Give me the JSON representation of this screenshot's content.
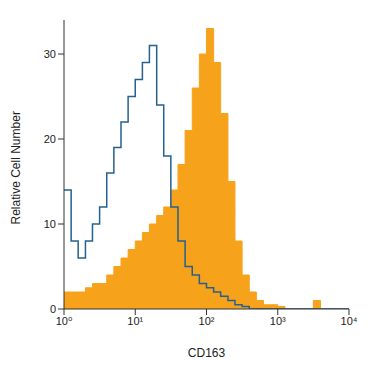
{
  "chart_data": {
    "type": "histogram",
    "x_label": "CD163",
    "y_label": "Relative Cell Number",
    "log": "x",
    "bins": [
      1,
      1.26,
      1.58,
      2,
      2.51,
      3.16,
      3.98,
      5.01,
      6.31,
      7.94,
      10,
      12.6,
      15.8,
      20,
      25.1,
      31.6,
      39.8,
      50.1,
      63.1,
      79.4,
      100,
      126,
      158,
      200,
      251,
      316,
      398,
      501,
      631,
      794,
      1000,
      1260,
      1580,
      2000,
      2510,
      3160,
      3980,
      5010,
      6310,
      7940,
      10000
    ],
    "series": [
      {
        "type": "area",
        "color": "#f7a21b",
        "values": [
          2,
          2,
          2,
          2.5,
          3,
          3,
          4,
          5,
          6,
          7,
          8,
          9,
          10,
          11,
          12,
          14,
          17,
          21,
          26,
          30,
          33,
          29,
          23,
          15,
          8,
          4,
          2,
          1,
          0.5,
          0.5,
          0.3,
          0,
          0,
          0,
          0,
          1,
          0,
          0,
          0,
          0
        ]
      },
      {
        "type": "line",
        "color": "#24618f",
        "values": [
          14,
          8,
          6,
          8,
          10,
          12,
          16,
          19,
          22,
          25,
          27,
          29,
          31,
          24,
          18,
          12,
          8,
          5,
          4,
          3,
          2.5,
          2,
          1.5,
          1,
          0.5,
          0.3,
          0,
          0,
          0,
          0,
          0,
          0,
          0,
          0,
          0,
          0,
          0,
          0,
          0,
          0
        ]
      }
    ],
    "xlim": [
      1,
      10000
    ],
    "xticks": [
      {
        "value": 1,
        "label": "10⁰"
      },
      {
        "value": 10,
        "label": "10¹"
      },
      {
        "value": 100,
        "label": "10²"
      },
      {
        "value": 1000,
        "label": "10³"
      },
      {
        "value": 10000,
        "label": "10⁴"
      }
    ],
    "ylim": [
      0,
      34
    ],
    "yticks": [
      0,
      10,
      20,
      30
    ]
  }
}
